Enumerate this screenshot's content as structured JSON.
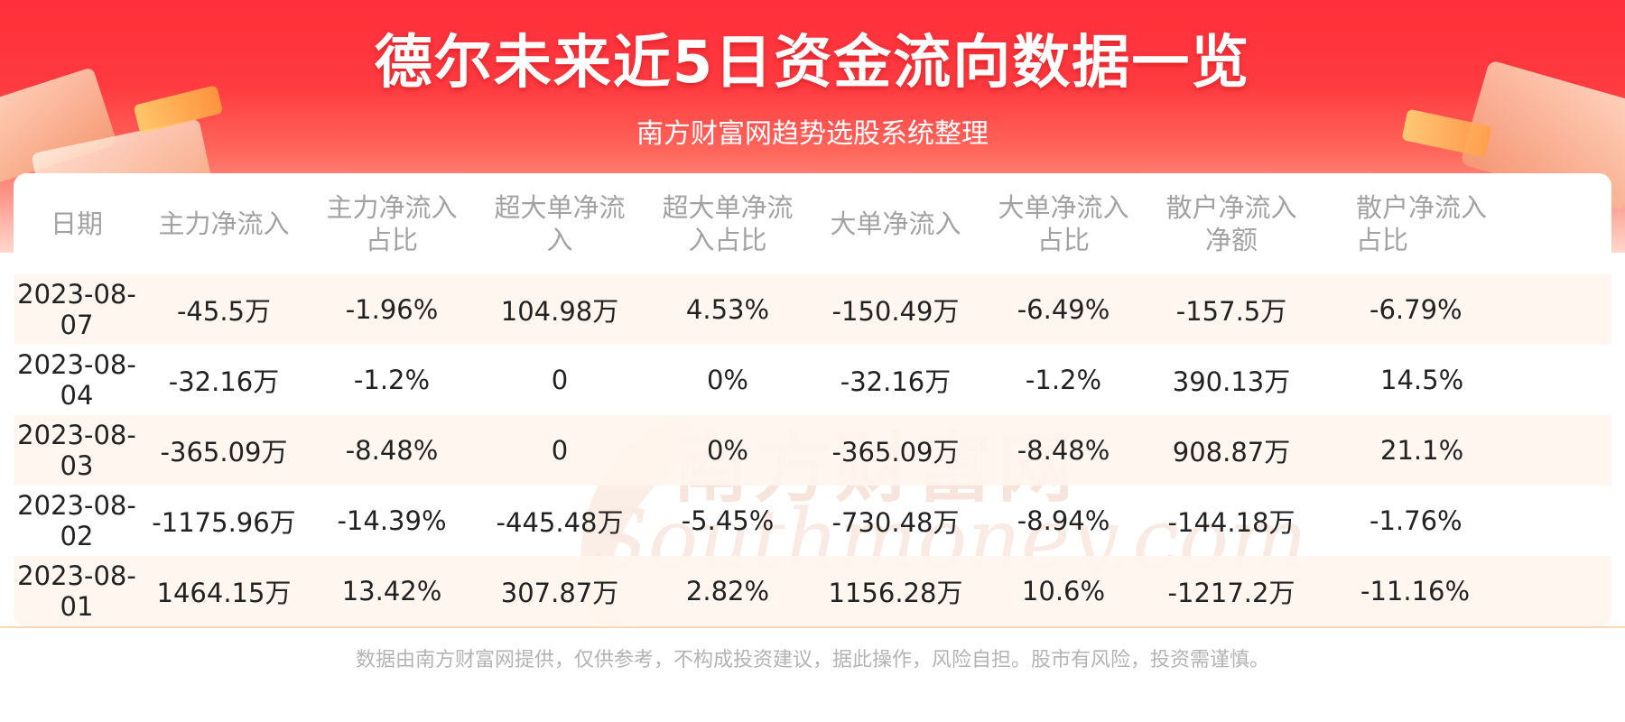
{
  "header": {
    "title": "德尔未来近5日资金流向数据一览",
    "subtitle": "南方财富网趋势选股系统整理"
  },
  "table": {
    "columns": [
      "日期",
      "主力净流入",
      "主力净流入占比",
      "超大单净流入",
      "超大单净流入占比",
      "大单净流入",
      "大单净流入占比",
      "散户净流入净额",
      "散户净流入占比"
    ],
    "rows": [
      [
        "2023-08-07",
        "-45.5万",
        "-1.96%",
        "104.98万",
        "4.53%",
        "-150.49万",
        "-6.49%",
        "-157.5万",
        "-6.79%"
      ],
      [
        "2023-08-04",
        "-32.16万",
        "-1.2%",
        "0",
        "0%",
        "-32.16万",
        "-1.2%",
        "390.13万",
        "14.5%"
      ],
      [
        "2023-08-03",
        "-365.09万",
        "-8.48%",
        "0",
        "0%",
        "-365.09万",
        "-8.48%",
        "908.87万",
        "21.1%"
      ],
      [
        "2023-08-02",
        "-1175.96万",
        "-14.39%",
        "-445.48万",
        "-5.45%",
        "-730.48万",
        "-8.94%",
        "-144.18万",
        "-1.76%"
      ],
      [
        "2023-08-01",
        "1464.15万",
        "13.42%",
        "307.87万",
        "2.82%",
        "1156.28万",
        "10.6%",
        "-1217.2万",
        "-11.16%"
      ]
    ]
  },
  "watermark": {
    "cn": "南方财富网",
    "en": "Southmoney.com"
  },
  "footer": {
    "disclaimer": "数据由南方财富网提供，仅供参考，不构成投资建议，据此操作，风险自担。股市有风险，投资需谨慎。"
  },
  "colors": {
    "banner_red": "#ff2f3b",
    "row_highlight": "#fff5ee",
    "header_text": "#a2a2a2",
    "body_text": "#222222"
  }
}
